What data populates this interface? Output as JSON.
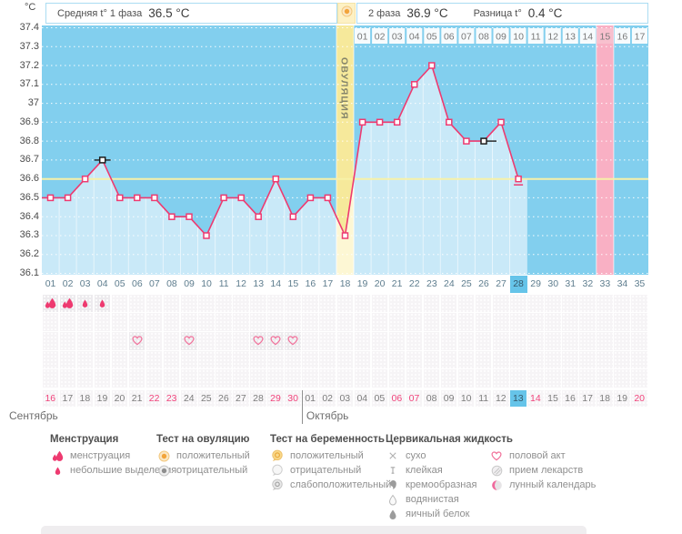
{
  "header": {
    "unit": "°C",
    "avg1_label": "Средняя t° 1 фаза",
    "avg1_value": "36.5 °C",
    "phase2_label": "2 фаза",
    "phase2_value": "36.9 °C",
    "diff_label": "Разница t°",
    "diff_value": "0.4 °C"
  },
  "chart_data": {
    "type": "line",
    "title": "Basal body temperature cycle chart",
    "unit": "°C",
    "ylim": [
      36.1,
      37.4
    ],
    "y_ticks": [
      "37.4",
      "37.3",
      "37.2",
      "37.1",
      "37",
      "36.9",
      "36.8",
      "36.7",
      "36.6",
      "36.5",
      "36.4",
      "36.3",
      "36.2",
      "36.1"
    ],
    "x_days": 35,
    "coverline": 36.6,
    "ovulation_day": 18,
    "ovulation_label": "ОВУЛЯЦИЯ",
    "highlight_day": 28,
    "pink_column_day": 33,
    "dpo_row": {
      "start_day": 19,
      "labels": [
        "01",
        "02",
        "03",
        "04",
        "05",
        "06",
        "07",
        "08",
        "09",
        "10",
        "11",
        "12",
        "13",
        "14",
        "15",
        "16",
        "17"
      ],
      "pink_index": 15
    },
    "temps": [
      {
        "day": 1,
        "t": 36.5
      },
      {
        "day": 2,
        "t": 36.5
      },
      {
        "day": 3,
        "t": 36.6
      },
      {
        "day": 4,
        "t": 36.7
      },
      {
        "day": 5,
        "t": 36.5
      },
      {
        "day": 6,
        "t": 36.5
      },
      {
        "day": 7,
        "t": 36.5
      },
      {
        "day": 8,
        "t": 36.4
      },
      {
        "day": 9,
        "t": 36.4
      },
      {
        "day": 10,
        "t": 36.3
      },
      {
        "day": 11,
        "t": 36.5
      },
      {
        "day": 12,
        "t": 36.5
      },
      {
        "day": 13,
        "t": 36.4
      },
      {
        "day": 14,
        "t": 36.6
      },
      {
        "day": 15,
        "t": 36.4
      },
      {
        "day": 16,
        "t": 36.5
      },
      {
        "day": 17,
        "t": 36.5
      },
      {
        "day": 18,
        "t": 36.3
      },
      {
        "day": 19,
        "t": 36.9
      },
      {
        "day": 20,
        "t": 36.9
      },
      {
        "day": 21,
        "t": 36.9
      },
      {
        "day": 22,
        "t": 37.1
      },
      {
        "day": 23,
        "t": 37.2
      },
      {
        "day": 24,
        "t": 36.9
      },
      {
        "day": 25,
        "t": 36.8
      },
      {
        "day": 26,
        "t": 36.8
      },
      {
        "day": 27,
        "t": 36.9
      },
      {
        "day": 28,
        "t": 36.6
      }
    ],
    "special_markers": [
      {
        "day": 4,
        "style": "black",
        "line": "both"
      },
      {
        "day": 26,
        "style": "black",
        "line": "right"
      },
      {
        "day": 28,
        "style": "underline"
      }
    ]
  },
  "day_numbers": [
    "01",
    "02",
    "03",
    "04",
    "05",
    "06",
    "07",
    "08",
    "09",
    "10",
    "11",
    "12",
    "13",
    "14",
    "15",
    "16",
    "17",
    "18",
    "19",
    "20",
    "21",
    "22",
    "23",
    "24",
    "25",
    "26",
    "27",
    "28",
    "29",
    "30",
    "31",
    "32",
    "33",
    "34",
    "35"
  ],
  "symbol_rows": [
    {
      "name": "menstruation",
      "cells": [
        {
          "day": 1,
          "icon": "drops-large"
        },
        {
          "day": 2,
          "icon": "drops-large"
        },
        {
          "day": 3,
          "icon": "drop-small"
        },
        {
          "day": 4,
          "icon": "drop-small"
        }
      ]
    },
    {
      "name": "ovulation-test",
      "cells": []
    },
    {
      "name": "intercourse",
      "cells": [
        {
          "day": 6,
          "icon": "heart"
        },
        {
          "day": 9,
          "icon": "heart"
        },
        {
          "day": 13,
          "icon": "heart"
        },
        {
          "day": 14,
          "icon": "heart"
        },
        {
          "day": 15,
          "icon": "heart"
        }
      ]
    },
    {
      "name": "cervical-fluid",
      "cells": []
    },
    {
      "name": "medication",
      "cells": []
    }
  ],
  "dates": [
    {
      "label": "16",
      "red": true
    },
    {
      "label": "17"
    },
    {
      "label": "18"
    },
    {
      "label": "19"
    },
    {
      "label": "20"
    },
    {
      "label": "21"
    },
    {
      "label": "22",
      "red": true
    },
    {
      "label": "23",
      "red": true
    },
    {
      "label": "24"
    },
    {
      "label": "25"
    },
    {
      "label": "26"
    },
    {
      "label": "27"
    },
    {
      "label": "28"
    },
    {
      "label": "29",
      "red": true
    },
    {
      "label": "30",
      "red": true
    },
    {
      "label": "01"
    },
    {
      "label": "02"
    },
    {
      "label": "03"
    },
    {
      "label": "04"
    },
    {
      "label": "05"
    },
    {
      "label": "06",
      "red": true
    },
    {
      "label": "07",
      "red": true
    },
    {
      "label": "08"
    },
    {
      "label": "09"
    },
    {
      "label": "10"
    },
    {
      "label": "11"
    },
    {
      "label": "12"
    },
    {
      "label": "13",
      "today": true
    },
    {
      "label": "14",
      "red": true
    },
    {
      "label": "15"
    },
    {
      "label": "16"
    },
    {
      "label": "17"
    },
    {
      "label": "18"
    },
    {
      "label": "19"
    },
    {
      "label": "20",
      "red": true
    }
  ],
  "months": {
    "first": "Сентябрь",
    "second": "Октябрь",
    "divider_after_day": 15
  },
  "legend": {
    "columns": [
      {
        "title": "Менструация",
        "x": 55,
        "items": [
          {
            "icon": "drops-large",
            "label": "менструация"
          },
          {
            "icon": "drop-small",
            "label": "небольшие выделения"
          }
        ]
      },
      {
        "title": "Тест на овуляцию",
        "x": 172,
        "items": [
          {
            "icon": "ring-orange",
            "label": "положительный"
          },
          {
            "icon": "ring-gray",
            "label": "отрицательный"
          }
        ]
      },
      {
        "title": "Тест на беременность",
        "x": 297,
        "items": [
          {
            "icon": "bubble-orange",
            "label": "положительный"
          },
          {
            "icon": "bubble-white",
            "label": "отрицательный"
          },
          {
            "icon": "bubble-gray",
            "label": "слабоположительный"
          }
        ]
      },
      {
        "title": "Цервикальная жидкость",
        "x": 424,
        "items": [
          {
            "icon": "cross",
            "label": "сухо"
          },
          {
            "icon": "sticky",
            "label": "клейкая"
          },
          {
            "icon": "creamy",
            "label": "кремообразная"
          },
          {
            "icon": "watery",
            "label": "водянистая"
          },
          {
            "icon": "eggwhite",
            "label": "яичный белок"
          }
        ]
      },
      {
        "title": "",
        "x": 538,
        "items": [
          {
            "icon": "heart",
            "label": "половой акт"
          },
          {
            "icon": "pill",
            "label": "прием лекарств"
          },
          {
            "icon": "moon",
            "label": "лунный календарь"
          }
        ]
      }
    ]
  },
  "colors": {
    "sky_blue": "#82cfee",
    "fill_blue": "#c9e9f8",
    "ovul_column": "#f6e99b",
    "ovul_fill": "#fdf7d4",
    "pink_column": "#f9b0c4",
    "pink_cell": "#f8c0ce",
    "coverline": "#f7f1a8",
    "curve": "#ee3a70",
    "today_blue": "#66c4e9",
    "red_date": "#f0437b",
    "header_border": "#abdcf2",
    "black_marker": "#1c1c1c"
  }
}
